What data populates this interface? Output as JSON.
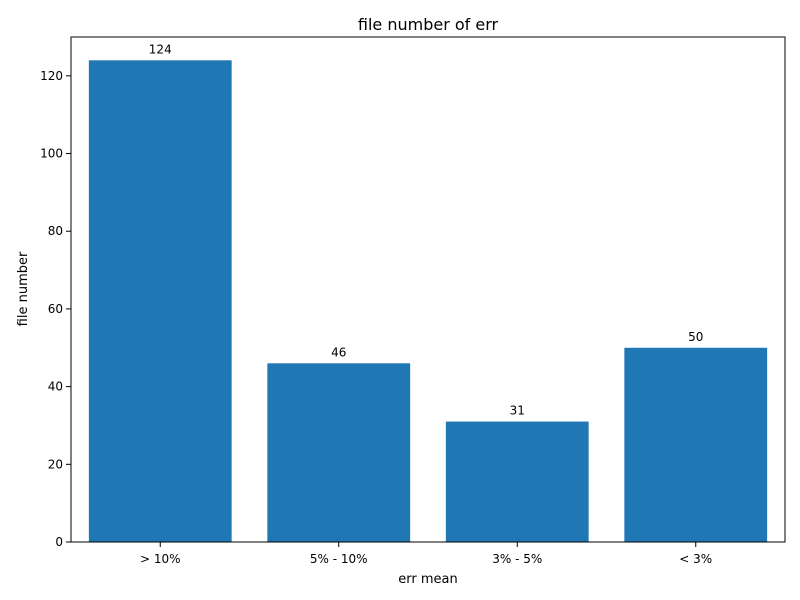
{
  "chart_data": {
    "type": "bar",
    "title": "file number of err",
    "xlabel": "err mean",
    "ylabel": "file number",
    "categories": [
      "> 10%",
      "5% - 10%",
      "3% - 5%",
      "< 3%"
    ],
    "values": [
      124,
      46,
      31,
      50
    ],
    "data_labels": [
      "124",
      "46",
      "31",
      "50"
    ],
    "ylim": [
      0,
      130
    ],
    "y_ticks": [
      0,
      20,
      40,
      60,
      80,
      100,
      120
    ],
    "y_tick_labels": [
      "0",
      "20",
      "40",
      "60",
      "80",
      "100",
      "120"
    ],
    "grid": false,
    "bar_color": "#1f77b4"
  }
}
